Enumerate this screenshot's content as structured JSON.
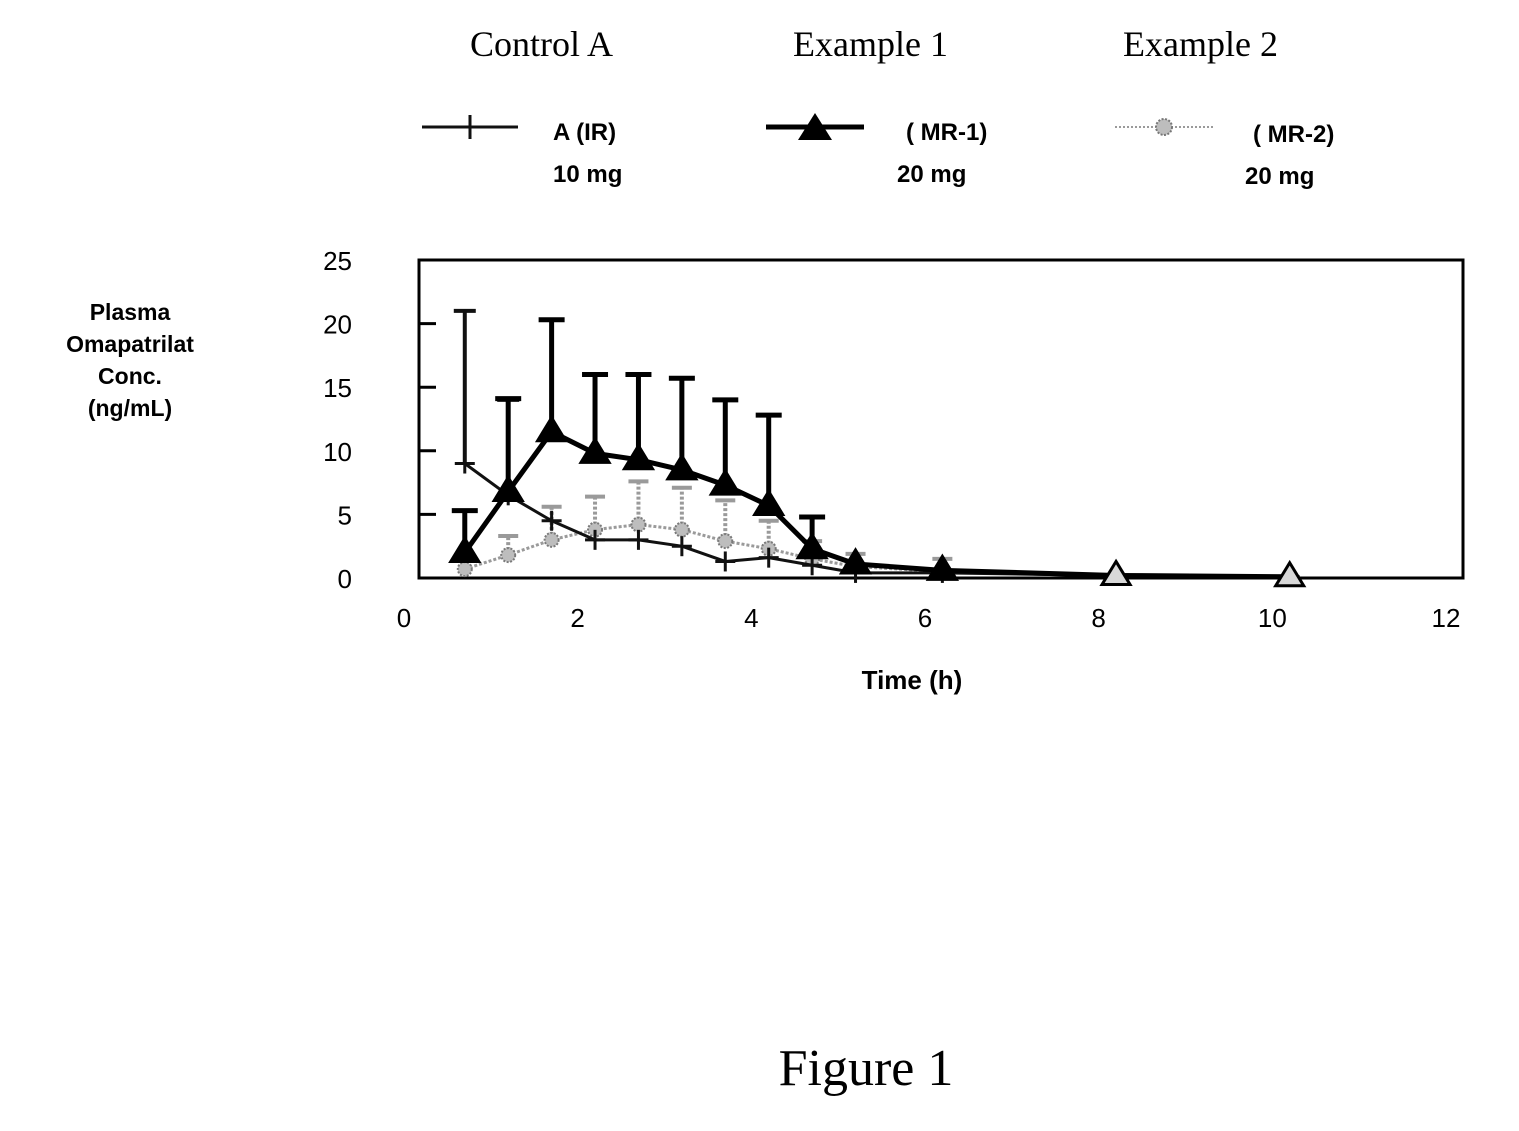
{
  "chart_data": {
    "type": "line",
    "title": "",
    "xlabel": "Time (h)",
    "ylabel_lines": [
      "Plasma",
      "Omapatrilat",
      "Conc.",
      "(ng/mL)"
    ],
    "xlim": [
      0,
      12
    ],
    "ylim": [
      0,
      25
    ],
    "x_ticks": [
      0,
      2,
      4,
      6,
      8,
      10,
      12
    ],
    "x_tick_labels": [
      "0",
      "2",
      "4",
      "6",
      "8",
      "10",
      "12"
    ],
    "y_ticks": [
      0,
      5,
      10,
      15,
      20,
      25
    ],
    "y_tick_labels": [
      "0",
      "5",
      "10",
      "15",
      "20",
      "25"
    ],
    "grid": false,
    "legend_placement": "top",
    "series": [
      {
        "group": "Control A",
        "name": "A (IR)",
        "dose": "10 mg",
        "marker": "plus",
        "color": "#111111",
        "x": [
          0.7,
          1.2,
          1.7,
          2.2,
          2.7,
          3.2,
          3.7,
          4.2,
          4.7,
          5.2,
          6.2,
          8.2,
          10.2
        ],
        "y": [
          9,
          6.5,
          4.5,
          3,
          3,
          2.5,
          1.3,
          1.6,
          1,
          0.4,
          0.4,
          0.2,
          0.1
        ],
        "err": [
          12,
          7.5,
          0,
          0,
          0,
          0,
          0,
          0,
          0,
          0,
          0,
          0,
          0
        ]
      },
      {
        "group": "Example 1",
        "name": "( MR-1)",
        "dose": "20 mg",
        "marker": "triangle-filled",
        "color": "#000000",
        "x": [
          0.7,
          1.2,
          1.7,
          2.2,
          2.7,
          3.2,
          3.7,
          4.2,
          4.7,
          5.2,
          6.2,
          8.2,
          10.2
        ],
        "y": [
          2,
          6.8,
          11.5,
          9.8,
          9.3,
          8.5,
          7.3,
          5.7,
          2.3,
          1.1,
          0.6,
          0.2,
          0.1
        ],
        "err": [
          3.3,
          7.3,
          8.8,
          6.2,
          6.7,
          7.2,
          6.7,
          7.1,
          2.5,
          0,
          0,
          0,
          0
        ]
      },
      {
        "group": "Example 2",
        "name": "( MR-2)",
        "dose": "20 mg",
        "marker": "circle-dotted",
        "color": "#9a9a9a",
        "x": [
          0.7,
          1.2,
          1.7,
          2.2,
          2.7,
          3.2,
          3.7,
          4.2,
          4.7,
          5.2,
          6.2,
          8.2,
          10.2
        ],
        "y": [
          0.7,
          1.8,
          3,
          3.8,
          4.2,
          3.8,
          2.9,
          2.3,
          1.5,
          0.9,
          0.5,
          0.2,
          0.05
        ],
        "err": [
          0,
          1.5,
          2.6,
          2.6,
          3.4,
          3.3,
          3.2,
          2.2,
          1.4,
          1.0,
          1.0,
          0,
          0
        ]
      }
    ]
  },
  "figure_caption": "Figure 1"
}
